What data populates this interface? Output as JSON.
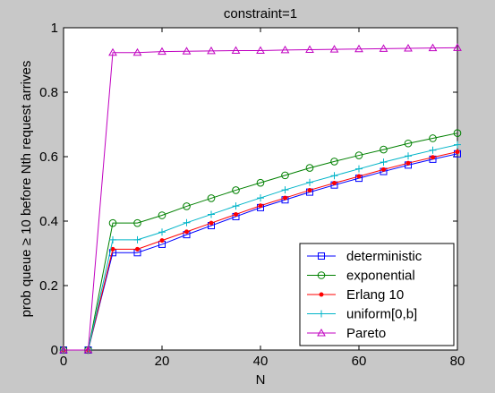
{
  "chart_data": {
    "type": "line",
    "title": "constraint=1",
    "xlabel": "N",
    "ylabel": "prob queue ≥ 10 before Nth request arrives",
    "xlim": [
      0,
      80
    ],
    "ylim": [
      0,
      1
    ],
    "xticks": [
      "0",
      "20",
      "40",
      "60",
      "80"
    ],
    "yticks": [
      "0",
      "0.2",
      "0.4",
      "0.6",
      "0.8",
      "1"
    ],
    "grid": false,
    "legend_position": "bottom-right",
    "x": [
      0,
      5,
      10,
      15,
      20,
      25,
      30,
      35,
      40,
      45,
      50,
      55,
      60,
      65,
      70,
      75,
      80
    ],
    "series": [
      {
        "name": "deterministic",
        "color": "#0000ff",
        "marker": "square",
        "values": [
          0,
          0,
          0.302,
          0.302,
          0.328,
          0.358,
          0.386,
          0.414,
          0.442,
          0.466,
          0.49,
          0.512,
          0.533,
          0.554,
          0.574,
          0.592,
          0.609
        ]
      },
      {
        "name": "exponential",
        "color": "#008000",
        "marker": "circle",
        "values": [
          0,
          0,
          0.394,
          0.394,
          0.418,
          0.446,
          0.471,
          0.496,
          0.519,
          0.542,
          0.565,
          0.585,
          0.604,
          0.622,
          0.641,
          0.657,
          0.673
        ]
      },
      {
        "name": "Erlang 10",
        "color": "#ff0000",
        "marker": "dot",
        "values": [
          0,
          0,
          0.313,
          0.313,
          0.34,
          0.367,
          0.394,
          0.421,
          0.448,
          0.472,
          0.496,
          0.518,
          0.539,
          0.56,
          0.58,
          0.598,
          0.615
        ]
      },
      {
        "name": "uniform[0,b]",
        "color": "#00b4c8",
        "marker": "plus",
        "values": [
          0,
          0,
          0.342,
          0.342,
          0.366,
          0.395,
          0.421,
          0.447,
          0.472,
          0.497,
          0.52,
          0.541,
          0.562,
          0.583,
          0.602,
          0.62,
          0.637
        ]
      },
      {
        "name": "Pareto",
        "color": "#c000c0",
        "marker": "triangle",
        "values": [
          0,
          0,
          0.923,
          0.923,
          0.926,
          0.927,
          0.928,
          0.929,
          0.929,
          0.931,
          0.932,
          0.933,
          0.934,
          0.935,
          0.936,
          0.937,
          0.938
        ]
      }
    ]
  }
}
